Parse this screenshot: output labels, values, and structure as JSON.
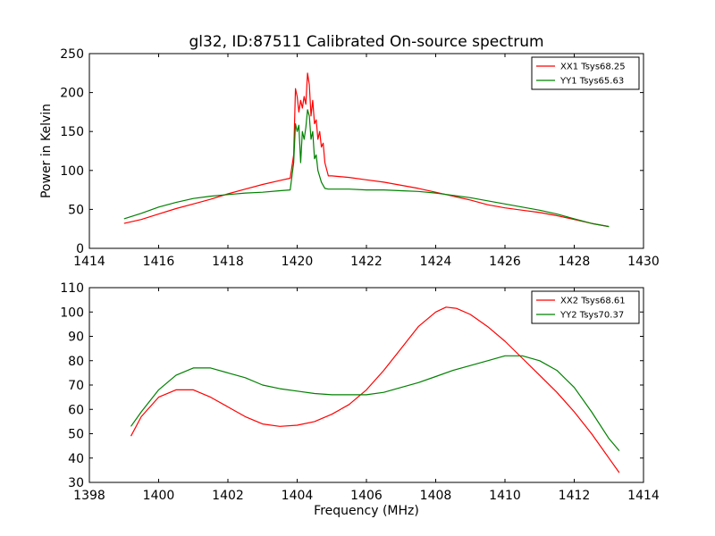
{
  "figure": {
    "title": "gl32, ID:87511 Calibrated On-source spectrum"
  },
  "chart_data": [
    {
      "type": "line",
      "ylabel": "Power in Kelvin",
      "xlabel": "",
      "xlim": [
        1414,
        1430
      ],
      "ylim": [
        0,
        250
      ],
      "xticks": [
        1414,
        1416,
        1418,
        1420,
        1422,
        1424,
        1426,
        1428,
        1430
      ],
      "yticks": [
        0,
        50,
        100,
        150,
        200,
        250
      ],
      "legend_position": "top-right",
      "grid": false,
      "series": [
        {
          "name": "XX1 Tsys68.25",
          "color": "#ff0000",
          "points": [
            [
              1415.0,
              32
            ],
            [
              1415.5,
              37
            ],
            [
              1416.0,
              44
            ],
            [
              1416.5,
              51
            ],
            [
              1417.0,
              57
            ],
            [
              1417.5,
              63
            ],
            [
              1418.0,
              70
            ],
            [
              1418.5,
              76
            ],
            [
              1419.0,
              82
            ],
            [
              1419.5,
              87
            ],
            [
              1419.8,
              90
            ],
            [
              1419.9,
              120
            ],
            [
              1419.95,
              205
            ],
            [
              1420.0,
              195
            ],
            [
              1420.05,
              175
            ],
            [
              1420.1,
              190
            ],
            [
              1420.15,
              180
            ],
            [
              1420.2,
              195
            ],
            [
              1420.25,
              185
            ],
            [
              1420.3,
              225
            ],
            [
              1420.35,
              210
            ],
            [
              1420.4,
              170
            ],
            [
              1420.45,
              190
            ],
            [
              1420.5,
              160
            ],
            [
              1420.55,
              165
            ],
            [
              1420.6,
              140
            ],
            [
              1420.65,
              150
            ],
            [
              1420.7,
              130
            ],
            [
              1420.75,
              135
            ],
            [
              1420.8,
              110
            ],
            [
              1420.9,
              93
            ],
            [
              1421.0,
              93
            ],
            [
              1421.5,
              91
            ],
            [
              1422.0,
              88
            ],
            [
              1422.5,
              85
            ],
            [
              1423.0,
              81
            ],
            [
              1423.5,
              77
            ],
            [
              1424.0,
              72
            ],
            [
              1424.5,
              67
            ],
            [
              1425.0,
              62
            ],
            [
              1425.5,
              56
            ],
            [
              1426.0,
              52
            ],
            [
              1426.5,
              49
            ],
            [
              1427.0,
              46
            ],
            [
              1427.5,
              42
            ],
            [
              1428.0,
              37
            ],
            [
              1428.5,
              32
            ],
            [
              1429.0,
              28
            ]
          ]
        },
        {
          "name": "YY1 Tsys65.63",
          "color": "#008000",
          "points": [
            [
              1415.0,
              38
            ],
            [
              1415.5,
              45
            ],
            [
              1416.0,
              53
            ],
            [
              1416.5,
              59
            ],
            [
              1417.0,
              64
            ],
            [
              1417.5,
              67
            ],
            [
              1418.0,
              69
            ],
            [
              1418.5,
              71
            ],
            [
              1419.0,
              72
            ],
            [
              1419.5,
              74
            ],
            [
              1419.8,
              75
            ],
            [
              1419.9,
              110
            ],
            [
              1419.95,
              160
            ],
            [
              1420.0,
              150
            ],
            [
              1420.05,
              158
            ],
            [
              1420.1,
              110
            ],
            [
              1420.15,
              150
            ],
            [
              1420.2,
              140
            ],
            [
              1420.25,
              155
            ],
            [
              1420.3,
              178
            ],
            [
              1420.35,
              170
            ],
            [
              1420.4,
              140
            ],
            [
              1420.45,
              150
            ],
            [
              1420.5,
              115
            ],
            [
              1420.55,
              120
            ],
            [
              1420.6,
              100
            ],
            [
              1420.7,
              85
            ],
            [
              1420.8,
              77
            ],
            [
              1420.9,
              76
            ],
            [
              1421.0,
              76
            ],
            [
              1421.5,
              76
            ],
            [
              1422.0,
              75
            ],
            [
              1422.5,
              75
            ],
            [
              1423.0,
              74
            ],
            [
              1423.5,
              73
            ],
            [
              1424.0,
              71
            ],
            [
              1424.5,
              68
            ],
            [
              1425.0,
              65
            ],
            [
              1425.5,
              61
            ],
            [
              1426.0,
              57
            ],
            [
              1426.5,
              53
            ],
            [
              1427.0,
              49
            ],
            [
              1427.5,
              44
            ],
            [
              1428.0,
              38
            ],
            [
              1428.5,
              32
            ],
            [
              1429.0,
              28
            ]
          ]
        }
      ]
    },
    {
      "type": "line",
      "ylabel": "",
      "xlabel": "Frequency (MHz)",
      "xlim": [
        1398,
        1414
      ],
      "ylim": [
        30,
        110
      ],
      "xticks": [
        1398,
        1400,
        1402,
        1404,
        1406,
        1408,
        1410,
        1412,
        1414
      ],
      "yticks": [
        30,
        40,
        50,
        60,
        70,
        80,
        90,
        100,
        110
      ],
      "legend_position": "top-right",
      "grid": false,
      "series": [
        {
          "name": "XX2 Tsys68.61",
          "color": "#ff0000",
          "points": [
            [
              1399.2,
              49
            ],
            [
              1399.5,
              57
            ],
            [
              1400.0,
              65
            ],
            [
              1400.5,
              68
            ],
            [
              1401.0,
              68
            ],
            [
              1401.5,
              65
            ],
            [
              1402.0,
              61
            ],
            [
              1402.5,
              57
            ],
            [
              1403.0,
              54
            ],
            [
              1403.5,
              53
            ],
            [
              1404.0,
              53.5
            ],
            [
              1404.5,
              55
            ],
            [
              1405.0,
              58
            ],
            [
              1405.5,
              62
            ],
            [
              1406.0,
              68
            ],
            [
              1406.5,
              76
            ],
            [
              1407.0,
              85
            ],
            [
              1407.5,
              94
            ],
            [
              1408.0,
              100
            ],
            [
              1408.3,
              102
            ],
            [
              1408.6,
              101.5
            ],
            [
              1409.0,
              99
            ],
            [
              1409.5,
              94
            ],
            [
              1410.0,
              88
            ],
            [
              1410.5,
              81
            ],
            [
              1411.0,
              74
            ],
            [
              1411.5,
              67
            ],
            [
              1412.0,
              59
            ],
            [
              1412.5,
              50
            ],
            [
              1413.0,
              40
            ],
            [
              1413.3,
              34
            ]
          ]
        },
        {
          "name": "YY2 Tsys70.37",
          "color": "#008000",
          "points": [
            [
              1399.2,
              53
            ],
            [
              1399.5,
              59
            ],
            [
              1400.0,
              68
            ],
            [
              1400.5,
              74
            ],
            [
              1401.0,
              77
            ],
            [
              1401.5,
              77
            ],
            [
              1402.0,
              75
            ],
            [
              1402.5,
              73
            ],
            [
              1403.0,
              70
            ],
            [
              1403.5,
              68.5
            ],
            [
              1404.0,
              67.5
            ],
            [
              1404.5,
              66.5
            ],
            [
              1405.0,
              66
            ],
            [
              1405.5,
              66
            ],
            [
              1406.0,
              66
            ],
            [
              1406.5,
              67
            ],
            [
              1407.0,
              69
            ],
            [
              1407.5,
              71
            ],
            [
              1408.0,
              73.5
            ],
            [
              1408.5,
              76
            ],
            [
              1409.0,
              78
            ],
            [
              1409.5,
              80
            ],
            [
              1410.0,
              82
            ],
            [
              1410.5,
              82
            ],
            [
              1411.0,
              80
            ],
            [
              1411.5,
              76
            ],
            [
              1412.0,
              69
            ],
            [
              1412.5,
              59
            ],
            [
              1413.0,
              48
            ],
            [
              1413.3,
              43
            ]
          ]
        }
      ]
    }
  ]
}
